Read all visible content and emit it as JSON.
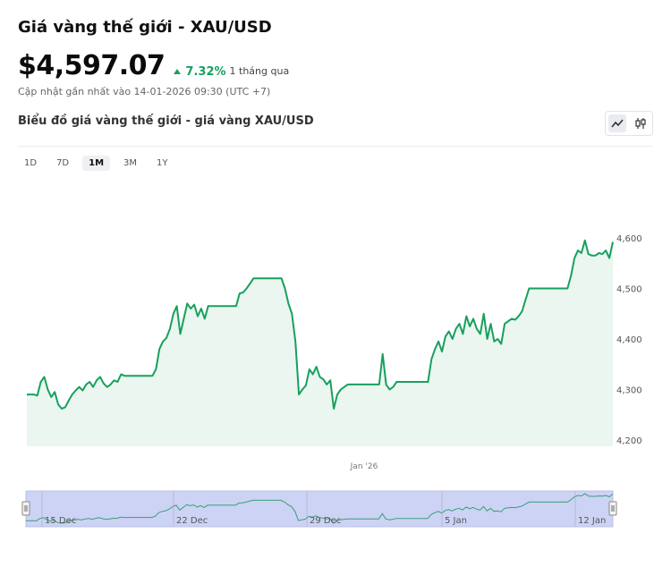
{
  "header": {
    "title": "Giá vàng thế giới - XAU/USD",
    "price": "$4,597.07",
    "change": "7.32%",
    "change_period": "1 tháng qua",
    "updated": "Cập nhật gần nhất vào 14-01-2026 09:30 (UTC +7)",
    "subtitle": "Biểu đồ giá vàng thế giới - giá vàng XAU/USD"
  },
  "toggles": [
    {
      "icon": "line-chart-icon",
      "active": true
    },
    {
      "icon": "candlestick-icon",
      "active": false
    }
  ],
  "ranges": [
    {
      "label": "1D",
      "active": false
    },
    {
      "label": "7D",
      "active": false
    },
    {
      "label": "1M",
      "active": true
    },
    {
      "label": "3M",
      "active": false
    },
    {
      "label": "1Y",
      "active": false
    }
  ],
  "colors": {
    "line": "#17a05d",
    "fill": "#eaf6ef",
    "navigator_fill": "#cdd3f5",
    "navigator_line": "#3a9e78",
    "up": "#17a05d"
  },
  "chart_data": {
    "type": "area",
    "x_tick_labels": [
      "Jan '26"
    ],
    "y_ticks": [
      4200,
      4300,
      4400,
      4500,
      4600
    ],
    "ylim": [
      4200,
      4600
    ],
    "grid": false,
    "values": [
      4290,
      4290,
      4290,
      4288,
      4315,
      4325,
      4300,
      4285,
      4295,
      4270,
      4262,
      4265,
      4278,
      4290,
      4298,
      4305,
      4298,
      4310,
      4315,
      4305,
      4318,
      4325,
      4312,
      4305,
      4310,
      4318,
      4315,
      4330,
      4327,
      4327,
      4327,
      4327,
      4327,
      4327,
      4327,
      4327,
      4327,
      4340,
      4380,
      4395,
      4402,
      4420,
      4450,
      4465,
      4410,
      4440,
      4470,
      4460,
      4468,
      4445,
      4460,
      4440,
      4465,
      4465,
      4465,
      4465,
      4465,
      4465,
      4465,
      4465,
      4465,
      4490,
      4492,
      4500,
      4510,
      4520,
      4520,
      4520,
      4520,
      4520,
      4520,
      4520,
      4520,
      4520,
      4500,
      4470,
      4450,
      4395,
      4290,
      4300,
      4308,
      4340,
      4330,
      4345,
      4325,
      4320,
      4310,
      4318,
      4262,
      4290,
      4300,
      4305,
      4310,
      4310,
      4310,
      4310,
      4310,
      4310,
      4310,
      4310,
      4310,
      4310,
      4370,
      4310,
      4300,
      4305,
      4315,
      4315,
      4315,
      4315,
      4315,
      4315,
      4315,
      4315,
      4315,
      4315,
      4360,
      4380,
      4395,
      4375,
      4405,
      4415,
      4400,
      4420,
      4430,
      4410,
      4445,
      4425,
      4440,
      4420,
      4410,
      4450,
      4400,
      4430,
      4395,
      4400,
      4390,
      4430,
      4435,
      4440,
      4438,
      4445,
      4455,
      4478,
      4500,
      4500,
      4500,
      4500,
      4500,
      4500,
      4500,
      4500,
      4500,
      4500,
      4500,
      4500,
      4525,
      4560,
      4575,
      4570,
      4595,
      4568,
      4565,
      4565,
      4570,
      4568,
      4575,
      4560,
      4592
    ],
    "navigator_ticks": [
      "15 Dec",
      "22 Dec",
      "29 Dec",
      "5 Jan",
      "12 Jan"
    ]
  }
}
